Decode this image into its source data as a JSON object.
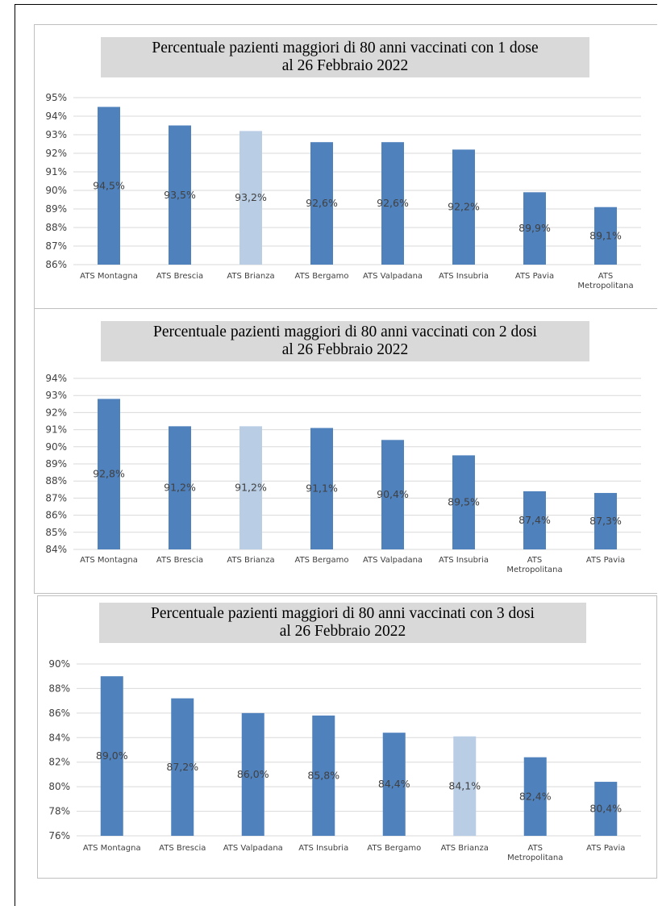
{
  "chart_data": [
    {
      "type": "bar",
      "title_lines": [
        "Percentuale pazienti maggiori di 80 anni vaccinati con 1 dose",
        "al 26 Febbraio 2022"
      ],
      "categories": [
        [
          "ATS Montagna"
        ],
        [
          "ATS Brescia"
        ],
        [
          "ATS Brianza"
        ],
        [
          "ATS Bergamo"
        ],
        [
          "ATS Valpadana"
        ],
        [
          "ATS Insubria"
        ],
        [
          "ATS Pavia"
        ],
        [
          "ATS",
          "Metropolitana"
        ]
      ],
      "values": [
        94.5,
        93.5,
        93.2,
        92.6,
        92.6,
        92.2,
        89.9,
        89.1
      ],
      "data_labels": [
        "94,5%",
        "93,5%",
        "93,2%",
        "92,6%",
        "92,6%",
        "92,2%",
        "89,9%",
        "89,1%"
      ],
      "highlight_index": 2,
      "ylim": [
        86,
        95
      ],
      "ytick_step": 1,
      "ytick_labels": [
        "86%",
        "87%",
        "88%",
        "89%",
        "90%",
        "91%",
        "92%",
        "93%",
        "94%",
        "95%"
      ],
      "grid": true
    },
    {
      "type": "bar",
      "title_lines": [
        "Percentuale pazienti maggiori di 80 anni vaccinati con 2 dosi",
        "al 26 Febbraio 2022"
      ],
      "categories": [
        [
          "ATS Montagna"
        ],
        [
          "ATS Brescia"
        ],
        [
          "ATS Brianza"
        ],
        [
          "ATS Bergamo"
        ],
        [
          "ATS Valpadana"
        ],
        [
          "ATS Insubria"
        ],
        [
          "ATS",
          "Metropolitana"
        ],
        [
          "ATS Pavia"
        ]
      ],
      "values": [
        92.8,
        91.2,
        91.2,
        91.1,
        90.4,
        89.5,
        87.4,
        87.3
      ],
      "data_labels": [
        "92,8%",
        "91,2%",
        "91,2%",
        "91,1%",
        "90,4%",
        "89,5%",
        "87,4%",
        "87,3%"
      ],
      "highlight_index": 2,
      "ylim": [
        84,
        94
      ],
      "ytick_step": 1,
      "ytick_labels": [
        "84%",
        "85%",
        "86%",
        "87%",
        "88%",
        "89%",
        "90%",
        "91%",
        "92%",
        "93%",
        "94%"
      ],
      "grid": true
    },
    {
      "type": "bar",
      "title_lines": [
        "Percentuale pazienti maggiori di 80 anni vaccinati con 3 dosi",
        "al 26 Febbraio 2022"
      ],
      "categories": [
        [
          "ATS Montagna"
        ],
        [
          "ATS Brescia"
        ],
        [
          "ATS Valpadana"
        ],
        [
          "ATS Insubria"
        ],
        [
          "ATS Bergamo"
        ],
        [
          "ATS Brianza"
        ],
        [
          "ATS",
          "Metropolitana"
        ],
        [
          "ATS Pavia"
        ]
      ],
      "values": [
        89.0,
        87.2,
        86.0,
        85.8,
        84.4,
        84.1,
        82.4,
        80.4
      ],
      "data_labels": [
        "89,0%",
        "87,2%",
        "86,0%",
        "85,8%",
        "84,4%",
        "84,1%",
        "82,4%",
        "80,4%"
      ],
      "highlight_index": 5,
      "ylim": [
        76,
        90
      ],
      "ytick_step": 2,
      "ytick_labels": [
        "76%",
        "78%",
        "80%",
        "82%",
        "84%",
        "86%",
        "88%",
        "90%"
      ],
      "grid": true
    }
  ],
  "colors": {
    "bar": "#4f81bd",
    "highlight": "#b9cde5",
    "grid": "#d9d9d9",
    "title_bg": "#d9d9d9"
  }
}
